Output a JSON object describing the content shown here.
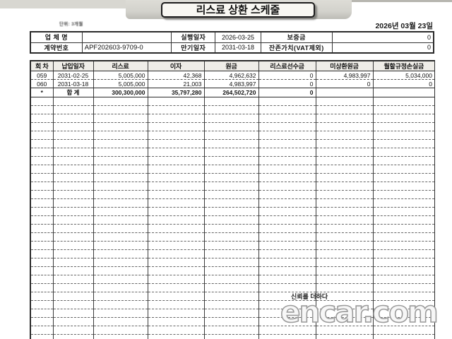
{
  "header": {
    "title": "리스료 상환 스케줄",
    "tiny_note": "단위: 3개월",
    "print_date": "2026년 03월 23일"
  },
  "info": {
    "company_label": "업 체 명",
    "company_value": "",
    "contract_label": "계약번호",
    "contract_value": "APF202603-9709-0",
    "exec_label": "실행일자",
    "exec_value": "2026-03-25",
    "maturity_label": "만기일자",
    "maturity_value": "2031-03-18",
    "deposit_label": "보증금",
    "deposit_value": "0",
    "residual_label": "잔존가치(VAT제외)",
    "residual_value": "0"
  },
  "schedule": {
    "columns": [
      "회 차",
      "납입일자",
      "리스료",
      "이자",
      "원금",
      "리스료선수금",
      "미상환원금",
      "월할규정손실금"
    ],
    "rows": [
      [
        "059",
        "2031-02-25",
        "5,005,000",
        "42,368",
        "4,962,632",
        "0",
        "4,983,997",
        "5,034,000"
      ],
      [
        "060",
        "2031-03-18",
        "5,005,000",
        "21,003",
        "4,983,997",
        "0",
        "0",
        "0"
      ]
    ],
    "total_row": [
      "*",
      "합 계",
      "300,300,000",
      "35,797,280",
      "264,502,720",
      "0",
      "",
      ""
    ],
    "empty_row_count": 29
  },
  "watermark": {
    "slogan": "신뢰를 더하다",
    "brand": "encar.com"
  }
}
